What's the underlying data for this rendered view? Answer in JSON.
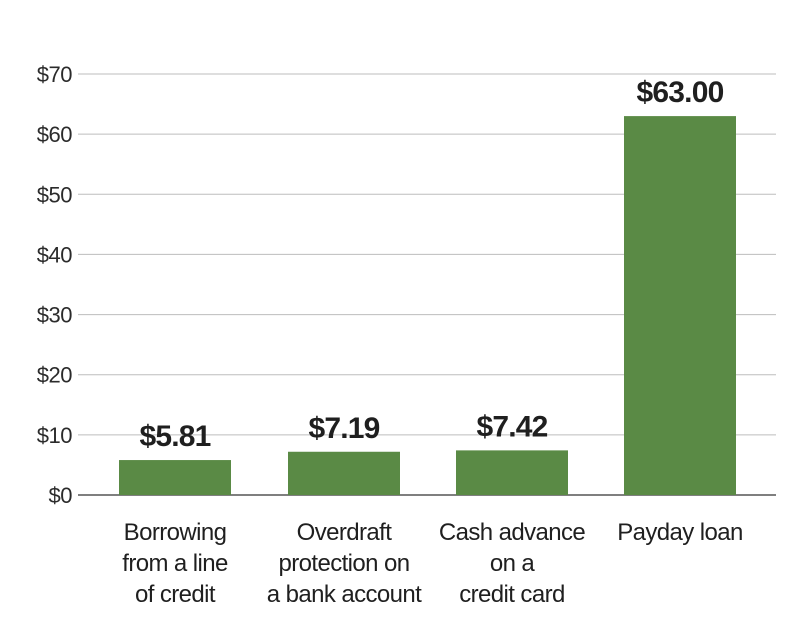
{
  "colors": {
    "bar": "#5a8a45",
    "grid": "#bdbdbd",
    "axis": "#555555",
    "background": "#ffffff"
  },
  "chart_data": {
    "type": "bar",
    "title": "",
    "xlabel": "",
    "ylabel": "",
    "ylim": [
      0,
      70
    ],
    "yticks": [
      0,
      10,
      20,
      30,
      40,
      50,
      60,
      70
    ],
    "ytick_labels": [
      "$0",
      "$10",
      "$20",
      "$30",
      "$40",
      "$50",
      "$60",
      "$70"
    ],
    "grid": true,
    "legend": "none",
    "categories": [
      [
        "Borrowing",
        "from a line",
        "of credit"
      ],
      [
        "Overdraft",
        "protection on",
        "a bank account"
      ],
      [
        "Cash advance",
        "on a",
        "credit card"
      ],
      [
        "Payday loan"
      ]
    ],
    "values": [
      5.81,
      7.19,
      7.42,
      63.0
    ],
    "value_labels": [
      "$5.81",
      "$7.19",
      "$7.42",
      "$63.00"
    ]
  }
}
